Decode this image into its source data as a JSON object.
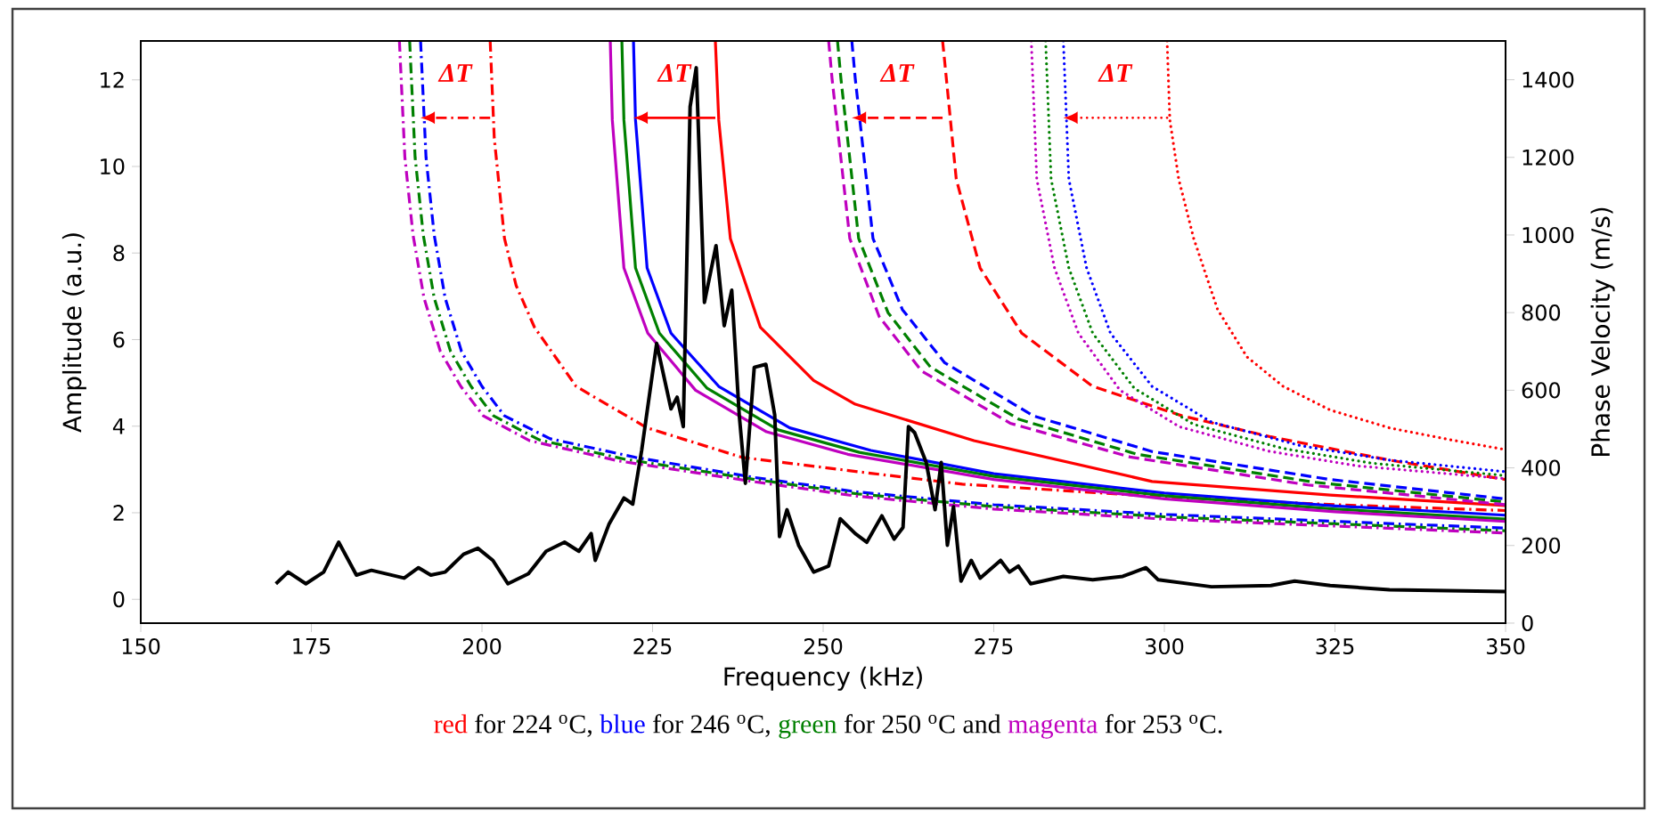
{
  "chart_data": {
    "type": "line",
    "xlabel": "Frequency (kHz)",
    "ylabel": "Amplitude (a.u.)",
    "y2label": "Phase Velocity (m/s)",
    "xlim": [
      150,
      350
    ],
    "xticks": [
      150,
      175,
      200,
      225,
      250,
      275,
      300,
      325,
      350
    ],
    "ylim": [
      -0.55,
      12.9
    ],
    "yticks": [
      0,
      2,
      4,
      6,
      8,
      10,
      12
    ],
    "y2lim": [
      0,
      1500
    ],
    "y2ticks": [
      0,
      200,
      400,
      600,
      800,
      1000,
      1200,
      1400
    ],
    "series": [
      {
        "color": "#ff0000",
        "line_style": "dashdot",
        "axis": "y2",
        "x": [
          201.2,
          201.8,
          203.3,
          205,
          207.7,
          213.8,
          224.2,
          238.1,
          255.6,
          270.4,
          300,
          325,
          350
        ],
        "values": [
          1500,
          1250,
          991,
          870,
          762,
          610,
          503,
          427,
          389,
          358,
          325,
          305,
          290
        ]
      },
      {
        "color": "#0000ff",
        "line_style": "dashdot",
        "axis": "y2",
        "x": [
          191,
          191.8,
          193,
          194.6,
          197,
          200,
          203.3,
          210,
          222.5,
          240,
          255,
          275,
          300,
          325,
          350
        ],
        "values": [
          1500,
          1200,
          1000,
          838,
          700,
          610,
          534,
          475,
          427,
          375,
          338,
          305,
          280,
          262,
          245
        ]
      },
      {
        "color": "#008000",
        "line_style": "dashdot",
        "axis": "y2",
        "x": [
          189.4,
          190.2,
          191.4,
          193,
          195.4,
          198.4,
          201.7,
          208.4,
          221,
          240,
          255,
          275,
          300,
          325,
          350
        ],
        "values": [
          1500,
          1200,
          1000,
          838,
          700,
          610,
          534,
          472,
          422,
          370,
          333,
          300,
          274,
          256,
          238
        ]
      },
      {
        "color": "#bf00bf",
        "line_style": "dashdot",
        "axis": "y2",
        "x": [
          187.9,
          188.7,
          189.9,
          191.5,
          193.9,
          196.9,
          200.2,
          207,
          220,
          240,
          255,
          275,
          300,
          325,
          350
        ],
        "values": [
          1500,
          1200,
          1000,
          838,
          700,
          610,
          534,
          470,
          418,
          364,
          327,
          294,
          268,
          250,
          232
        ]
      },
      {
        "color": "#ff0000",
        "line_style": "solid",
        "axis": "y2",
        "x": [
          234.2,
          234.7,
          236.4,
          240.8,
          248.6,
          254.7,
          272.1,
          298.2,
          324.3,
          350
        ],
        "values": [
          1500,
          1296,
          991,
          762,
          625,
          564,
          470,
          365,
          330,
          303
        ]
      },
      {
        "color": "#0000ff",
        "line_style": "solid",
        "axis": "y2",
        "x": [
          222.2,
          222.5,
          224.2,
          227.7,
          234.7,
          245.1,
          257,
          275,
          300,
          325,
          350
        ],
        "values": [
          1500,
          1296,
          915,
          747,
          610,
          503,
          445,
          385,
          335,
          302,
          278
        ]
      },
      {
        "color": "#008000",
        "line_style": "solid",
        "axis": "y2",
        "x": [
          220.5,
          220.8,
          222.5,
          226,
          233,
          243.4,
          255.3,
          275,
          300,
          325,
          350
        ],
        "values": [
          1500,
          1296,
          915,
          747,
          605,
          498,
          440,
          378,
          328,
          294,
          268
        ]
      },
      {
        "color": "#bf00bf",
        "line_style": "solid",
        "axis": "y2",
        "x": [
          218.8,
          219.1,
          220.8,
          224.3,
          231.3,
          241.7,
          253.6,
          275,
          300,
          325,
          350
        ],
        "values": [
          1500,
          1296,
          915,
          747,
          600,
          493,
          435,
          370,
          320,
          287,
          262
        ]
      },
      {
        "color": "#ff0000",
        "line_style": "dashed",
        "axis": "y2",
        "x": [
          267.5,
          267.8,
          269.5,
          273,
          279.1,
          289.5,
          302.6,
          315.6,
          333,
          350
        ],
        "values": [
          1500,
          1448,
          1144,
          915,
          747,
          610,
          534,
          480,
          420,
          370
        ]
      },
      {
        "color": "#0000ff",
        "line_style": "dashed",
        "axis": "y2",
        "x": [
          254.2,
          254.7,
          257.3,
          261.6,
          267.8,
          280.8,
          298.2,
          324.3,
          350
        ],
        "values": [
          1500,
          1403,
          991,
          808,
          671,
          534,
          442,
          370,
          320
        ]
      },
      {
        "color": "#008000",
        "line_style": "dashed",
        "axis": "y2",
        "x": [
          252.1,
          252.6,
          255.2,
          259.5,
          265.7,
          278.7,
          296,
          322,
          350
        ],
        "values": [
          1500,
          1403,
          991,
          800,
          660,
          525,
          435,
          363,
          312
        ]
      },
      {
        "color": "#bf00bf",
        "line_style": "dashed",
        "axis": "y2",
        "x": [
          250.8,
          251.3,
          253.9,
          258.2,
          264.4,
          277.4,
          295,
          321,
          350
        ],
        "values": [
          1500,
          1403,
          991,
          790,
          650,
          515,
          428,
          356,
          305
        ]
      },
      {
        "color": "#ff0000",
        "line_style": "dotted",
        "axis": "y2",
        "x": [
          300.4,
          300.8,
          302.1,
          304.3,
          307.8,
          312.1,
          317.4,
          324.3,
          333,
          341.7,
          350
        ],
        "values": [
          1500,
          1296,
          1144,
          991,
          808,
          686,
          610,
          549,
          503,
          473,
          447
        ]
      },
      {
        "color": "#0000ff",
        "line_style": "dotted",
        "axis": "y2",
        "x": [
          285.2,
          286,
          288.6,
          292.1,
          298.2,
          306.9,
          320,
          333,
          350
        ],
        "values": [
          1500,
          1144,
          915,
          747,
          610,
          518,
          457,
          420,
          390
        ]
      },
      {
        "color": "#008000",
        "line_style": "dotted",
        "axis": "y2",
        "x": [
          282.6,
          283.4,
          286,
          289.5,
          295.6,
          304.3,
          317.4,
          330.4,
          350
        ],
        "values": [
          1500,
          1144,
          915,
          747,
          605,
          512,
          450,
          412,
          380
        ]
      },
      {
        "color": "#bf00bf",
        "line_style": "dotted",
        "axis": "y2",
        "x": [
          280.5,
          281.3,
          283.9,
          287.4,
          293.5,
          302.2,
          315.3,
          328.3,
          350
        ],
        "values": [
          1500,
          1144,
          915,
          747,
          600,
          506,
          443,
          405,
          372
        ]
      },
      {
        "color": "#000000",
        "line_style": "solid",
        "axis": "y",
        "x": [
          169.8,
          171.6,
          174.2,
          176.8,
          179,
          181.6,
          183.8,
          188.6,
          190.7,
          192.5,
          194.6,
          197.3,
          199.4,
          201.6,
          203.8,
          206.8,
          209.4,
          212.1,
          214.2,
          216,
          216.6,
          218.6,
          220.8,
          222.1,
          223.4,
          225.6,
          227.7,
          228.6,
          229.5,
          230.5,
          231.4,
          232.6,
          234.3,
          235.5,
          236.6,
          237.7,
          238.6,
          239.9,
          241.6,
          242.9,
          243.6,
          244.7,
          246.4,
          248.6,
          250.8,
          252.5,
          254.7,
          256.4,
          258.6,
          260.4,
          261.7,
          262.5,
          263.4,
          265.1,
          266.4,
          267.3,
          268.2,
          269.1,
          270.2,
          271.7,
          273,
          276,
          277.3,
          278.6,
          280.4,
          285.2,
          289.5,
          293.9,
          297.3,
          299.1,
          306.9,
          315.6,
          319.1,
          324.3,
          333,
          350
        ],
        "values": [
          0.36,
          0.63,
          0.36,
          0.63,
          1.32,
          0.56,
          0.67,
          0.49,
          0.73,
          0.56,
          0.63,
          1.04,
          1.18,
          0.9,
          0.36,
          0.59,
          1.11,
          1.32,
          1.11,
          1.52,
          0.9,
          1.73,
          2.34,
          2.2,
          3.44,
          5.91,
          4.4,
          4.67,
          3.99,
          11.38,
          12.28,
          6.86,
          8.17,
          6.32,
          7.14,
          4.26,
          2.68,
          5.36,
          5.43,
          4.26,
          1.45,
          2.07,
          1.25,
          0.63,
          0.77,
          1.86,
          1.52,
          1.32,
          1.93,
          1.39,
          1.66,
          3.99,
          3.85,
          3.16,
          2.07,
          3.16,
          1.25,
          2.14,
          0.42,
          0.9,
          0.49,
          0.9,
          0.63,
          0.77,
          0.36,
          0.53,
          0.45,
          0.53,
          0.73,
          0.45,
          0.29,
          0.32,
          0.42,
          0.32,
          0.22,
          0.18
        ]
      }
    ],
    "annotations": [
      "ΔT",
      "ΔT",
      "ΔT",
      "ΔT",
      "red",
      "for 224 $^{o}$C,",
      "blue",
      "for 246 $^{o}$C,",
      "green",
      "for 250 $^{o}$C and",
      "magenta",
      "for 253 $^{o}$C."
    ]
  }
}
